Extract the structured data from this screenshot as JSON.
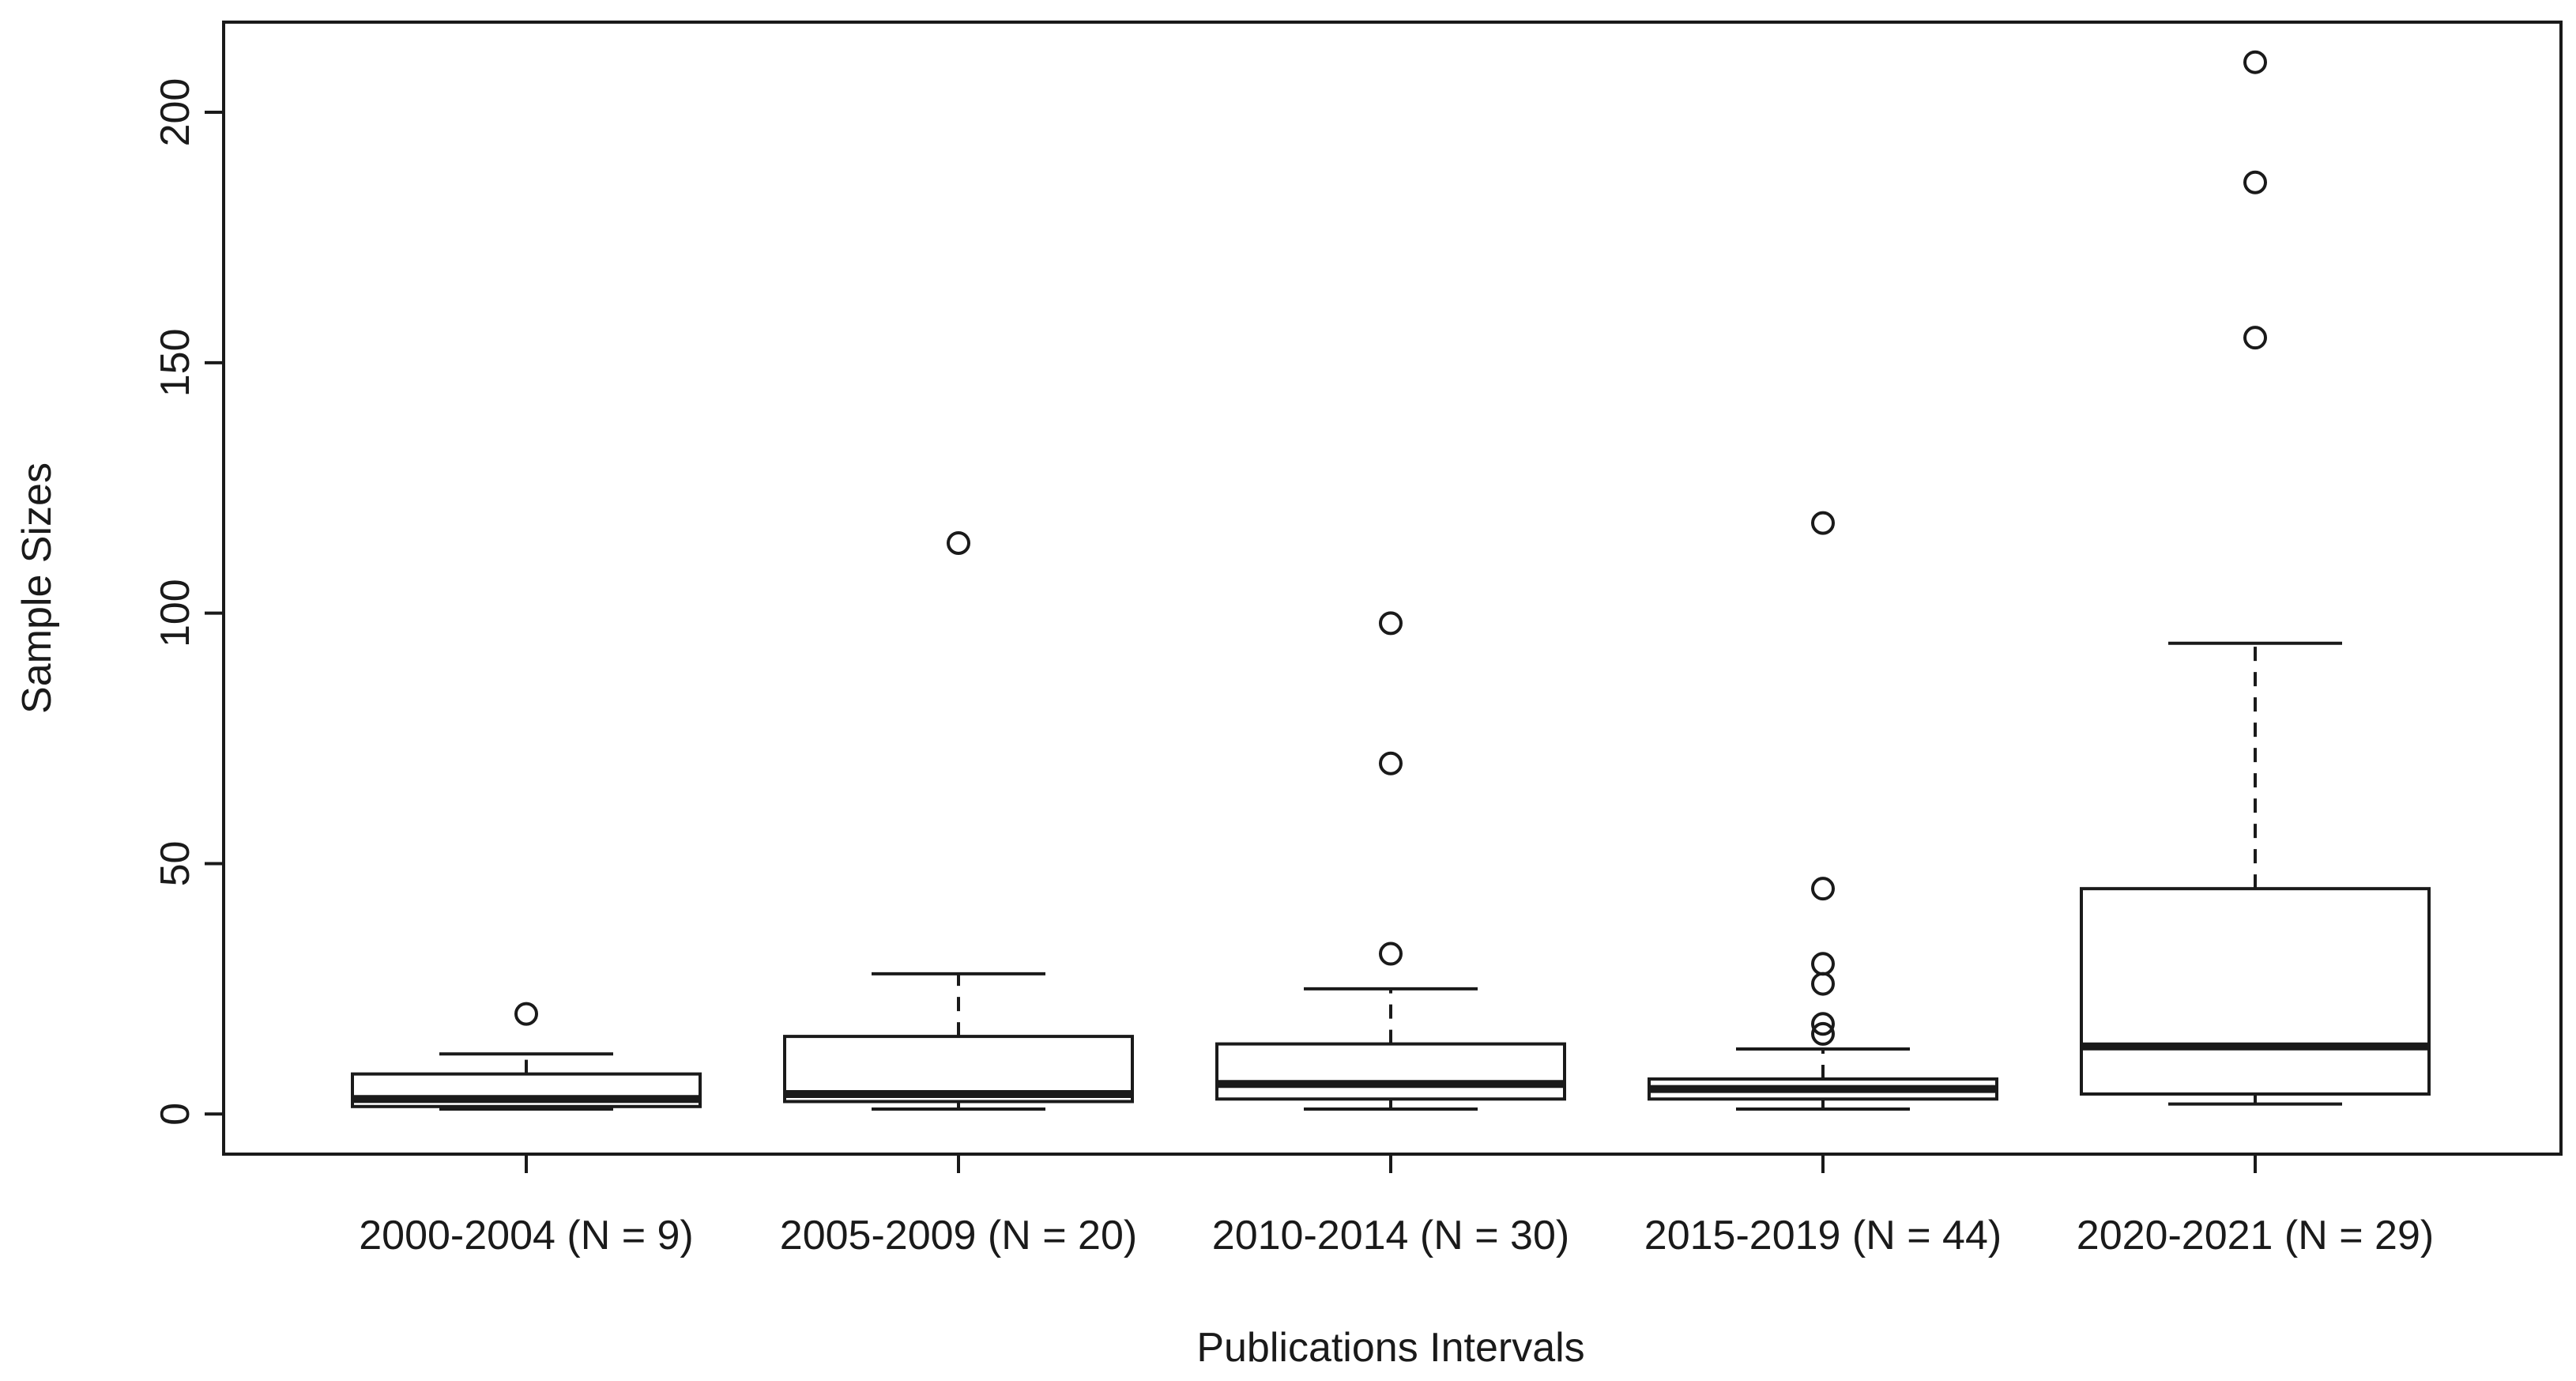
{
  "chart_data": {
    "type": "boxplot",
    "xlabel": "Publications Intervals",
    "ylabel": "Sample Sizes",
    "ylim": [
      -8,
      218
    ],
    "yticks": [
      0,
      50,
      100,
      150,
      200
    ],
    "grid": false,
    "colors": {
      "stroke": "#1a1a1a",
      "fill": "#ffffff"
    },
    "categories": [
      "2000-2004 (N = 9)",
      "2005-2009 (N = 20)",
      "2010-2014 (N = 30)",
      "2015-2019 (N = 44)",
      "2020-2021 (N = 29)"
    ],
    "boxes": [
      {
        "whisker_low": 1,
        "q1": 1.5,
        "median": 3,
        "q3": 8,
        "whisker_high": 12,
        "outliers": [
          20
        ]
      },
      {
        "whisker_low": 1,
        "q1": 2.5,
        "median": 4,
        "q3": 15.5,
        "whisker_high": 28,
        "outliers": [
          114
        ]
      },
      {
        "whisker_low": 1,
        "q1": 3,
        "median": 6,
        "q3": 14,
        "whisker_high": 25,
        "outliers": [
          32,
          70,
          98
        ]
      },
      {
        "whisker_low": 1,
        "q1": 3,
        "median": 5,
        "q3": 7,
        "whisker_high": 13,
        "outliers": [
          16,
          18,
          26,
          30,
          45,
          118
        ]
      },
      {
        "whisker_low": 2,
        "q1": 4,
        "median": 13.5,
        "q3": 45,
        "whisker_high": 94,
        "outliers": [
          155,
          186,
          210
        ]
      }
    ]
  }
}
